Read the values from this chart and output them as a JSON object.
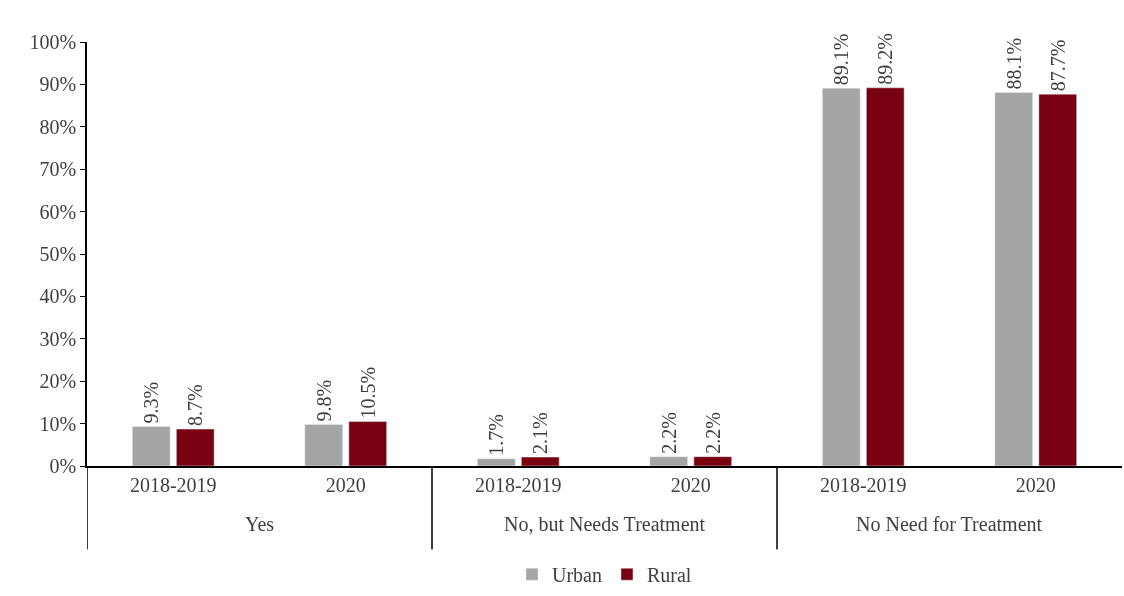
{
  "chart_data": {
    "type": "bar",
    "categories": [
      "2018-2019",
      "2020",
      "2018-2019",
      "2020",
      "2018-2019",
      "2020"
    ],
    "annotations": [
      "Yes",
      "No, but Needs Treatment",
      "No Need for Treatment"
    ],
    "series": [
      {
        "name": "Urban",
        "color": "#a5a5a5",
        "values": [
          9.3,
          9.8,
          1.7,
          2.2,
          89.1,
          88.1
        ],
        "value_labels": [
          "9.3%",
          "9.8%",
          "1.7%",
          "2.2%",
          "89.1%",
          "88.1%"
        ]
      },
      {
        "name": "Rural",
        "color": "#780010",
        "values": [
          8.7,
          10.5,
          2.1,
          2.2,
          89.2,
          87.7
        ],
        "value_labels": [
          "8.7%",
          "10.5%",
          "2.1%",
          "2.2%",
          "89.2%",
          "87.7%"
        ]
      }
    ],
    "ylim": [
      0,
      100
    ],
    "yticks": [
      {
        "value": 0,
        "label": "0%"
      },
      {
        "value": 10,
        "label": "10%"
      },
      {
        "value": 20,
        "label": "20%"
      },
      {
        "value": 30,
        "label": "30%"
      },
      {
        "value": 40,
        "label": "40%"
      },
      {
        "value": 50,
        "label": "50%"
      },
      {
        "value": 60,
        "label": "60%"
      },
      {
        "value": 70,
        "label": "70%"
      },
      {
        "value": 80,
        "label": "80%"
      },
      {
        "value": 90,
        "label": "90%"
      },
      {
        "value": 100,
        "label": "100%"
      }
    ],
    "legend": "bottom"
  }
}
